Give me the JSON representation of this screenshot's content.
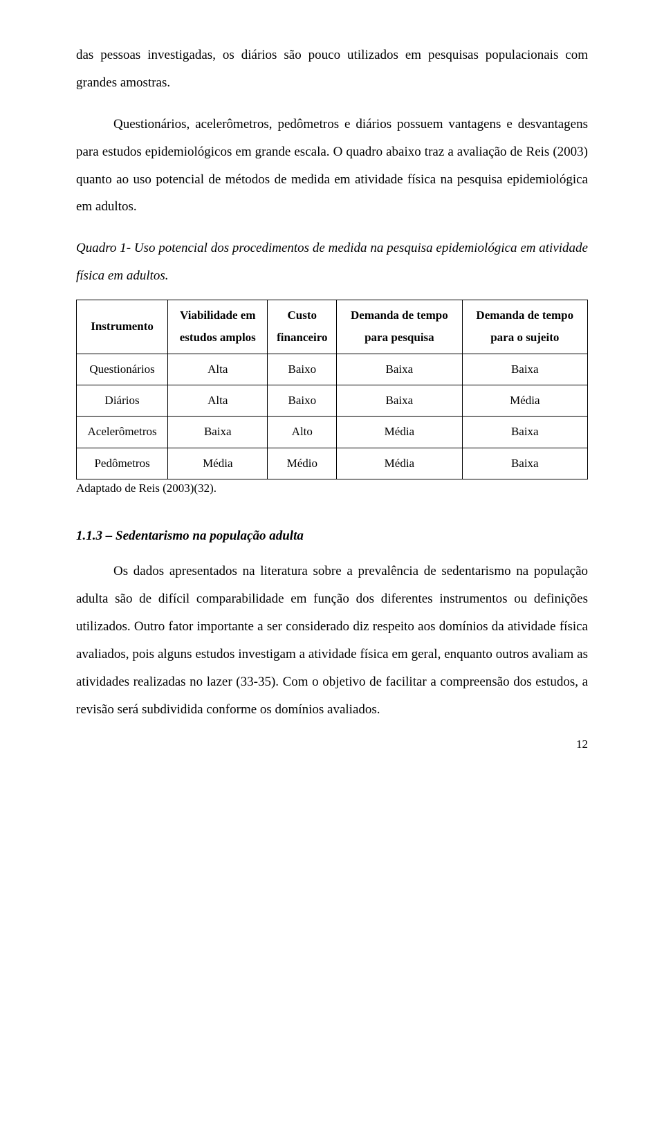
{
  "paragraphs": {
    "p1": "das pessoas investigadas, os diários são pouco utilizados em pesquisas populacionais com grandes amostras.",
    "p2": "Questionários, acelerômetros, pedômetros e diários possuem vantagens e desvantagens para estudos epidemiológicos em grande escala. O quadro abaixo traz a avaliação de Reis (2003) quanto ao uso potencial de métodos de medida em atividade física na pesquisa epidemiológica em adultos.",
    "caption": "Quadro 1- Uso potencial dos procedimentos de medida na pesquisa epidemiológica em atividade física em adultos.",
    "adapted": "Adaptado de Reis (2003)(32).",
    "subheading": "1.1.3 – Sedentarismo na população adulta",
    "p3": "Os dados apresentados na literatura sobre a prevalência de sedentarismo na população adulta são de difícil comparabilidade em função dos diferentes instrumentos ou definições utilizados. Outro fator importante a ser considerado diz respeito aos domínios da atividade física avaliados, pois alguns estudos investigam a atividade física em geral, enquanto outros avaliam as atividades realizadas no lazer (33-35). Com o objetivo de facilitar a compreensão dos estudos, a revisão será subdividida conforme os domínios avaliados."
  },
  "table": {
    "headers": {
      "c0": "Instrumento",
      "c1a": "Viabilidade em",
      "c1b": "estudos amplos",
      "c2a": "Custo",
      "c2b": "financeiro",
      "c3a": "Demanda de tempo",
      "c3b": "para pesquisa",
      "c4a": "Demanda de tempo",
      "c4b": "para o sujeito"
    },
    "rows": [
      {
        "c0": "Questionários",
        "c1": "Alta",
        "c2": "Baixo",
        "c3": "Baixa",
        "c4": "Baixa"
      },
      {
        "c0": "Diários",
        "c1": "Alta",
        "c2": "Baixo",
        "c3": "Baixa",
        "c4": "Média"
      },
      {
        "c0": "Acelerômetros",
        "c1": "Baixa",
        "c2": "Alto",
        "c3": "Média",
        "c4": "Baixa"
      },
      {
        "c0": "Pedômetros",
        "c1": "Média",
        "c2": "Médio",
        "c3": "Média",
        "c4": "Baixa"
      }
    ]
  },
  "pageNumber": "12"
}
